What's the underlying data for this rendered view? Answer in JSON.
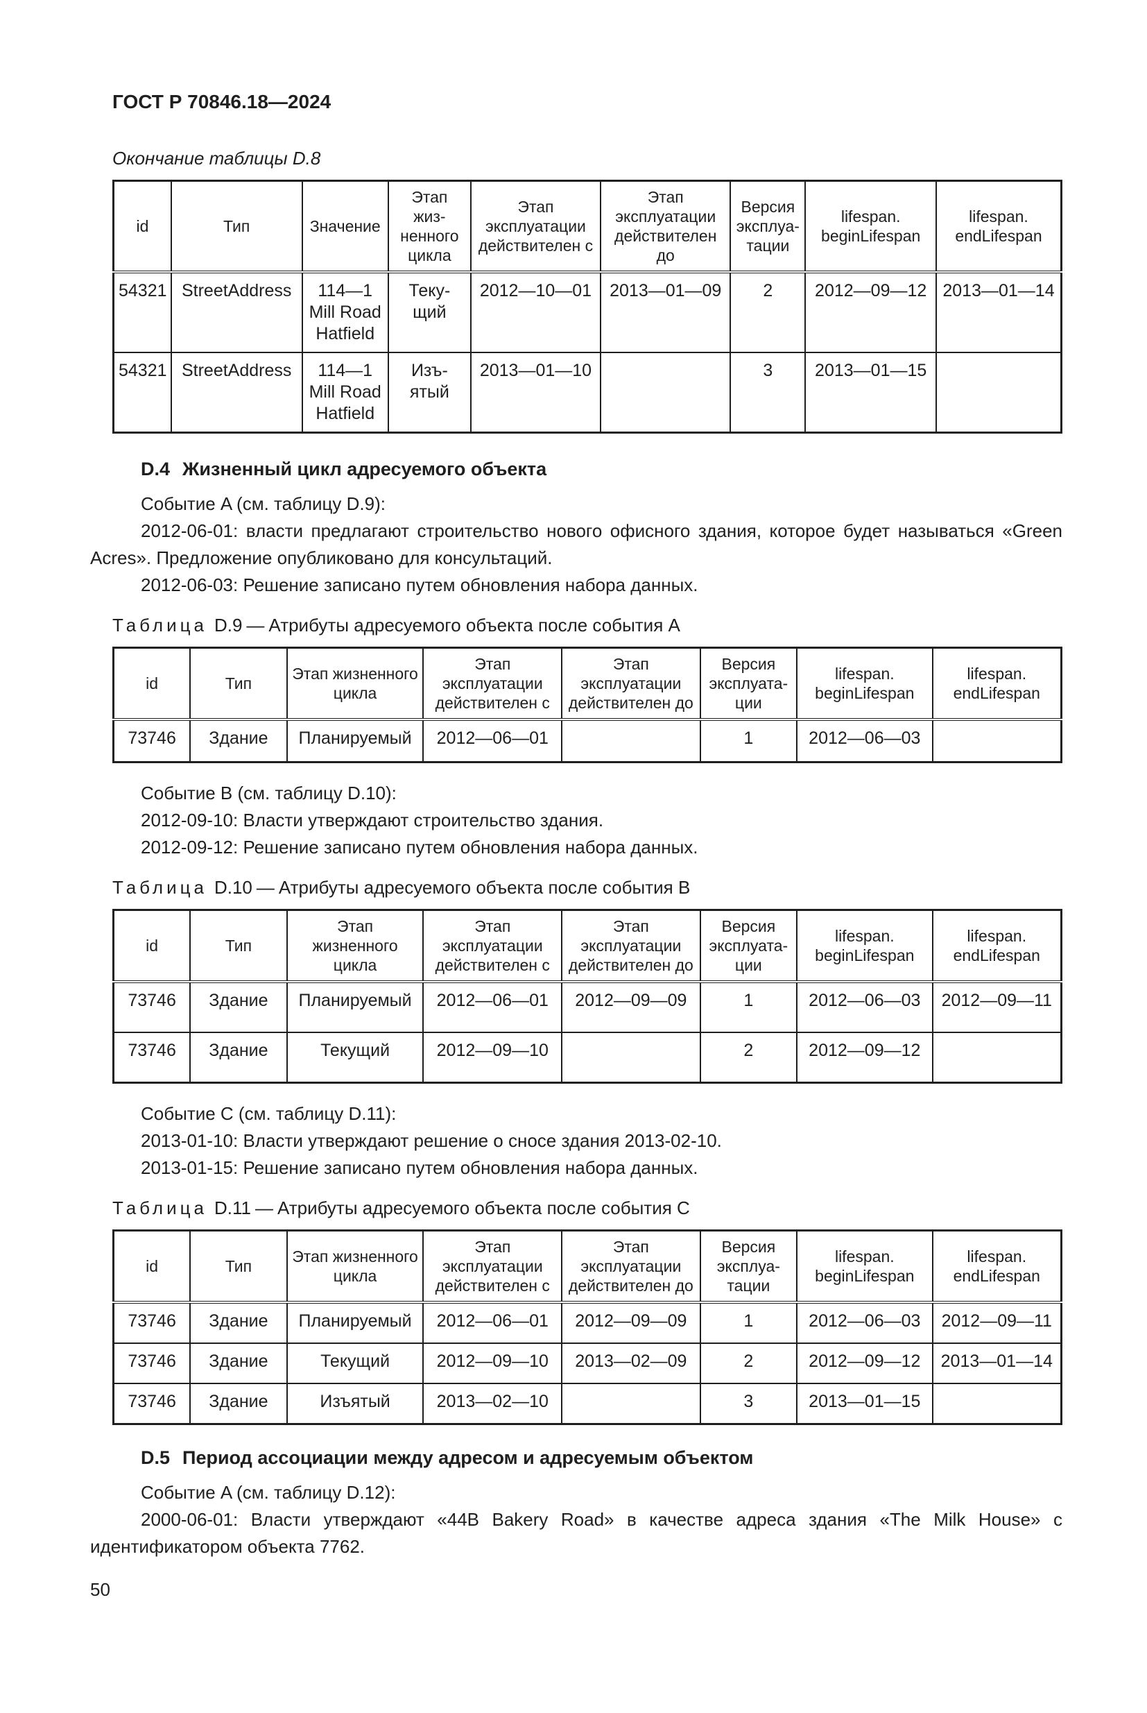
{
  "doc_header": "ГОСТ Р 70846.18—2024",
  "continuation_caption": "Окончание таблицы D.8",
  "page_number": "50",
  "tables": {
    "d8": {
      "col_widths": [
        6.1,
        13.8,
        9.1,
        8.7,
        13.7,
        13.7,
        7.9,
        13.8,
        13.2
      ],
      "headers": [
        "id",
        "Тип",
        "Значение",
        "Этап\nжиз-\nненного\nцикла",
        "Этап\nэксплуатации\nдействителен с",
        "Этап\nэксплуатации\nдействителен\nдо",
        "Версия\nэксплуа-\nтации",
        "lifespan.\nbeginLifespan",
        "lifespan.\nendLifespan"
      ],
      "rows": [
        [
          "54321",
          "StreetAddress",
          "114—1\nMill Road\nHatfield",
          "Теку-\nщий",
          "2012—10—01",
          "2013—01—09",
          "2",
          "2012—09—12",
          "2013—01—14"
        ],
        [
          "54321",
          "StreetAddress",
          "114—1\nMill Road\nHatfield",
          "Изъ-\nятый",
          "2013—01—10",
          "",
          "3",
          "2013—01—15",
          ""
        ]
      ]
    },
    "d9": {
      "caption": {
        "label": "Таблица",
        "number": "D.9",
        "dash": "—",
        "title": "Атрибуты адресуемого объекта после события A"
      },
      "col_widths": [
        8.1,
        10.2,
        14.4,
        14.6,
        14.6,
        10.2,
        14.3,
        13.6
      ],
      "headers": [
        "id",
        "Тип",
        "Этап жизненного\nцикла",
        "Этап\nэксплуатации\nдействителен с",
        "Этап\nэксплуатации\nдействителен до",
        "Версия\nэксплуата-\nции",
        "lifespan.\nbeginLifespan",
        "lifespan.\nendLifespan"
      ],
      "rows": [
        [
          "73746",
          "Здание",
          "Планируемый",
          "2012—06—01",
          "",
          "1",
          "2012—06—03",
          ""
        ]
      ]
    },
    "d10": {
      "caption": {
        "label": "Таблица",
        "number": "D.10",
        "dash": "—",
        "title": "Атрибуты адресуемого объекта после события B"
      },
      "col_widths": [
        8.1,
        10.2,
        14.4,
        14.6,
        14.6,
        10.2,
        14.3,
        13.6
      ],
      "headers": [
        "id",
        "Тип",
        "Этап\nжизненного\nцикла",
        "Этап\nэксплуатации\nдействителен с",
        "Этап\nэксплуатации\nдействителен до",
        "Версия\nэксплуата-\nции",
        "lifespan.\nbeginLifespan",
        "lifespan.\nendLifespan"
      ],
      "rows": [
        [
          "73746",
          "Здание",
          "Планируемый",
          "2012—06—01",
          "2012—09—09",
          "1",
          "2012—06—03",
          "2012—09—11"
        ],
        [
          "73746",
          "Здание",
          "Текущий",
          "2012—09—10",
          "",
          "2",
          "2012—09—12",
          ""
        ]
      ]
    },
    "d11": {
      "caption": {
        "label": "Таблица",
        "number": "D.11",
        "dash": "—",
        "title": "Атрибуты адресуемого объекта после события C"
      },
      "col_widths": [
        8.1,
        10.2,
        14.4,
        14.6,
        14.6,
        10.2,
        14.3,
        13.6
      ],
      "headers": [
        "id",
        "Тип",
        "Этап жизненного\nцикла",
        "Этап\nэксплуатации\nдействителен с",
        "Этап\nэксплуатации\nдействителен до",
        "Версия\nэксплуа-\nтации",
        "lifespan.\nbeginLifespan",
        "lifespan.\nendLifespan"
      ],
      "rows": [
        [
          "73746",
          "Здание",
          "Планируемый",
          "2012—06—01",
          "2012—09—09",
          "1",
          "2012—06—03",
          "2012—09—11"
        ],
        [
          "73746",
          "Здание",
          "Текущий",
          "2012—09—10",
          "2013—02—09",
          "2",
          "2012—09—12",
          "2013—01—14"
        ],
        [
          "73746",
          "Здание",
          "Изъятый",
          "2013—02—10",
          "",
          "3",
          "2013—01—15",
          ""
        ]
      ]
    }
  },
  "sections": {
    "d4": {
      "number": "D.4",
      "title": "Жизненный цикл адресуемого объекта",
      "event_a_paragraphs": [
        "Событие A (см. таблицу D.9):",
        "2012-06-01: власти предлагают строительство нового офисного здания, которое будет называться «Green Acres». Предложение опубликовано для консультаций.",
        "2012-06-03: Решение записано путем обновления набора данных."
      ],
      "event_b_paragraphs": [
        "Событие B (см. таблицу D.10):",
        "2012-09-10: Власти утверждают строительство здания.",
        "2012-09-12: Решение записано путем обновления набора данных."
      ],
      "event_c_paragraphs": [
        "Событие C (см. таблицу D.11):",
        "2013-01-10: Власти утверждают решение о сносе здания 2013-02-10.",
        "2013-01-15: Решение записано путем обновления набора данных."
      ]
    },
    "d5": {
      "number": "D.5",
      "title": "Период ассоциации между адресом и адресуемым объектом",
      "event_a_paragraphs": [
        "Событие A (см. таблицу D.12):",
        "2000-06-01: Власти утверждают «44B Bakery Road» в качестве адреса здания «The Milk House» с идентификатором объекта 7762."
      ]
    }
  }
}
